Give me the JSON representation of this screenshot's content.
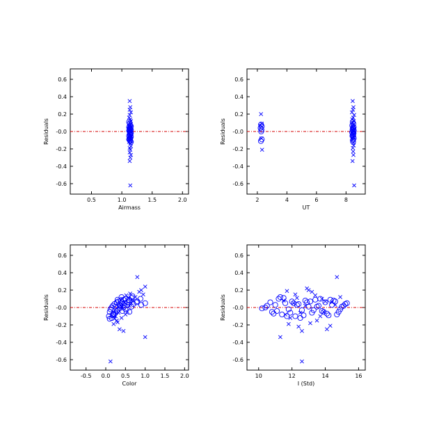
{
  "colors": {
    "points": "#0000ff",
    "zero_line": "#d40000",
    "axes": "#000000"
  },
  "chart_data": [
    {
      "type": "scatter",
      "xlabel": "Airmass",
      "ylabel": "Residuals",
      "xlim": [
        0.15,
        2.1
      ],
      "ylim": [
        -0.72,
        0.72
      ],
      "xticks": [
        0.5,
        1.0,
        1.5,
        2.0
      ],
      "xtick_labels": [
        "0.5",
        "1.0",
        "1.5",
        "2.0"
      ],
      "yticks": [
        -0.6,
        -0.4,
        -0.2,
        0.0,
        0.2,
        0.4,
        0.6
      ],
      "ytick_labels": [
        "-0.6",
        "-0.4",
        "-0.2",
        "-0.0",
        "0.2",
        "0.4",
        "0.6"
      ],
      "reference_line_y": 0.0,
      "series": [
        {
          "marker": "x",
          "x": [
            1.13,
            1.14,
            1.15,
            1.13,
            1.12,
            1.14,
            1.15,
            1.13,
            1.14,
            1.12,
            1.15,
            1.13,
            1.14,
            1.13,
            1.15,
            1.12,
            1.14,
            1.13,
            1.15,
            1.14,
            1.13,
            1.12,
            1.14,
            1.15,
            1.13,
            1.14,
            1.13,
            1.15,
            1.14,
            1.13,
            1.14,
            1.13
          ],
          "y": [
            0.35,
            0.28,
            0.22,
            0.19,
            0.16,
            0.14,
            0.12,
            0.1,
            0.08,
            0.06,
            0.05,
            0.03,
            0.02,
            0.01,
            -0.01,
            -0.02,
            -0.03,
            -0.05,
            -0.06,
            -0.08,
            -0.1,
            -0.12,
            -0.14,
            -0.17,
            -0.19,
            -0.21,
            -0.24,
            -0.27,
            -0.3,
            -0.34,
            -0.62,
            0.25
          ]
        },
        {
          "marker": "o",
          "x": [
            1.12,
            1.13,
            1.14,
            1.15,
            1.12,
            1.13,
            1.14,
            1.15,
            1.12,
            1.13,
            1.14,
            1.15,
            1.13,
            1.14,
            1.12,
            1.15,
            1.13,
            1.14,
            1.12,
            1.13,
            1.14,
            1.15,
            1.13,
            1.14
          ],
          "y": [
            0.11,
            0.09,
            0.07,
            0.06,
            0.05,
            0.04,
            0.03,
            0.02,
            0.01,
            0.0,
            -0.01,
            -0.02,
            -0.03,
            -0.04,
            -0.05,
            -0.06,
            -0.07,
            -0.08,
            -0.09,
            -0.1,
            -0.11,
            -0.12,
            0.02,
            -0.01
          ]
        }
      ]
    },
    {
      "type": "scatter",
      "xlabel": "UT",
      "ylabel": "Residuals",
      "xlim": [
        1.3,
        9.3
      ],
      "ylim": [
        -0.72,
        0.72
      ],
      "xticks": [
        2,
        4,
        6,
        8
      ],
      "xtick_labels": [
        "2",
        "4",
        "6",
        "8"
      ],
      "yticks": [
        -0.6,
        -0.4,
        -0.2,
        0.0,
        0.2,
        0.4,
        0.6
      ],
      "ytick_labels": [
        "-0.6",
        "-0.4",
        "-0.2",
        "-0.0",
        "0.2",
        "0.4",
        "0.6"
      ],
      "reference_line_y": 0.0,
      "series": [
        {
          "marker": "x",
          "x": [
            2.25,
            2.3,
            2.2,
            2.28,
            2.32,
            8.45,
            8.5,
            8.4,
            8.55,
            8.48,
            8.42,
            8.52,
            8.46,
            8.5,
            8.44,
            8.53,
            8.47,
            8.41,
            8.51,
            8.49,
            8.45,
            8.43,
            8.5,
            8.52,
            8.46,
            8.48,
            8.5,
            8.44,
            8.55,
            8.47
          ],
          "y": [
            0.2,
            0.09,
            0.07,
            -0.08,
            -0.21,
            0.35,
            0.28,
            0.22,
            0.19,
            0.16,
            0.14,
            0.12,
            0.1,
            0.08,
            0.05,
            0.03,
            0.01,
            -0.02,
            -0.04,
            -0.06,
            -0.08,
            -0.1,
            -0.13,
            -0.16,
            -0.19,
            -0.23,
            -0.27,
            -0.34,
            -0.62,
            0.25
          ]
        },
        {
          "marker": "o",
          "x": [
            2.25,
            2.3,
            2.22,
            2.28,
            2.26,
            2.3,
            2.24,
            8.45,
            8.5,
            8.42,
            8.52,
            8.46,
            8.48,
            8.44,
            8.53,
            8.47,
            8.41,
            8.51,
            8.49,
            8.45,
            8.43,
            8.5,
            8.52,
            8.46,
            8.48
          ],
          "y": [
            0.08,
            0.06,
            0.04,
            0.02,
            0.0,
            -0.09,
            -0.11,
            0.11,
            0.09,
            0.07,
            0.05,
            0.04,
            0.03,
            0.02,
            0.01,
            0.0,
            -0.01,
            -0.02,
            -0.03,
            -0.04,
            -0.05,
            -0.06,
            -0.08,
            -0.1,
            -0.12
          ]
        }
      ]
    },
    {
      "type": "scatter",
      "xlabel": "Color",
      "ylabel": "Residuals",
      "xlim": [
        -0.9,
        2.1
      ],
      "ylim": [
        -0.72,
        0.72
      ],
      "xticks": [
        -0.5,
        0.0,
        0.5,
        1.0,
        1.5,
        2.0
      ],
      "xtick_labels": [
        "-0.5",
        "0.0",
        "0.5",
        "1.0",
        "1.5",
        "2.0"
      ],
      "yticks": [
        -0.6,
        -0.4,
        -0.2,
        0.0,
        0.2,
        0.4,
        0.6
      ],
      "ytick_labels": [
        "-0.6",
        "-0.4",
        "-0.2",
        "-0.0",
        "0.2",
        "0.4",
        "0.6"
      ],
      "reference_line_y": 0.0,
      "series": [
        {
          "marker": "x",
          "x": [
            0.12,
            0.2,
            0.28,
            0.35,
            0.4,
            0.45,
            0.5,
            0.55,
            0.6,
            0.65,
            0.7,
            0.75,
            0.8,
            0.85,
            0.9,
            0.95,
            1.0,
            0.25,
            0.32,
            0.38,
            0.42,
            0.48,
            0.52,
            0.58,
            0.62,
            0.3,
            0.22,
            0.15,
            0.4,
            1.0
          ],
          "y": [
            -0.62,
            -0.19,
            -0.15,
            -0.25,
            -0.12,
            -0.27,
            -0.08,
            -0.05,
            0.02,
            0.05,
            0.08,
            0.12,
            0.35,
            0.18,
            0.2,
            0.15,
            0.24,
            -0.1,
            -0.06,
            0.03,
            0.1,
            0.06,
            0.14,
            0.11,
            0.16,
            -0.17,
            -0.13,
            -0.09,
            0.01,
            -0.34
          ]
        },
        {
          "marker": "o",
          "x": [
            0.08,
            0.1,
            0.12,
            0.15,
            0.18,
            0.2,
            0.22,
            0.25,
            0.28,
            0.3,
            0.32,
            0.35,
            0.38,
            0.4,
            0.42,
            0.45,
            0.48,
            0.5,
            0.55,
            0.6,
            0.65,
            0.7,
            0.8,
            0.9,
            1.0,
            0.15,
            0.2,
            0.25,
            0.3,
            0.35,
            0.4,
            0.45,
            0.5,
            0.55,
            0.6,
            0.65,
            0.1,
            0.18,
            0.28,
            0.38,
            0.48,
            0.58,
            0.68,
            0.78,
            0.88
          ],
          "y": [
            -0.1,
            -0.05,
            -0.02,
            0.0,
            0.02,
            -0.07,
            0.04,
            0.01,
            0.06,
            -0.03,
            0.07,
            0.03,
            0.08,
            0.05,
            -0.04,
            0.09,
            0.02,
            0.1,
            0.06,
            0.08,
            0.11,
            0.04,
            0.07,
            0.03,
            0.05,
            -0.12,
            -0.09,
            -0.06,
            0.09,
            -0.01,
            0.12,
            0.0,
            -0.02,
            0.03,
            -0.05,
            0.01,
            -0.13,
            -0.08,
            -0.04,
            0.02,
            0.05,
            0.09,
            0.13,
            0.06,
            0.1
          ]
        }
      ]
    },
    {
      "type": "scatter",
      "xlabel": "I (Std)",
      "ylabel": "Residuals",
      "xlim": [
        9.3,
        16.4
      ],
      "ylim": [
        -0.72,
        0.72
      ],
      "xticks": [
        10,
        12,
        14,
        16
      ],
      "xtick_labels": [
        "10",
        "12",
        "14",
        "16"
      ],
      "yticks": [
        -0.6,
        -0.4,
        -0.2,
        0.0,
        0.2,
        0.4,
        0.6
      ],
      "ytick_labels": [
        "-0.6",
        "-0.4",
        "-0.2",
        "-0.0",
        "0.2",
        "0.4",
        "0.6"
      ],
      "reference_line_y": 0.0,
      "series": [
        {
          "marker": "x",
          "x": [
            11.3,
            11.6,
            11.8,
            12.1,
            12.4,
            12.6,
            12.9,
            13.2,
            13.5,
            13.8,
            14.1,
            14.4,
            14.7,
            14.9,
            11.5,
            11.9,
            12.2,
            12.5,
            12.8,
            13.1,
            13.4,
            13.7,
            14.0,
            14.3,
            14.6,
            12.6,
            13.0,
            13.9,
            12.3,
            11.7
          ],
          "y": [
            -0.34,
            -0.08,
            -0.19,
            0.05,
            -0.22,
            -0.27,
            0.22,
            0.18,
            -0.15,
            0.1,
            -0.25,
            0.06,
            0.35,
            0.12,
            0.08,
            -0.12,
            0.15,
            -0.06,
            0.02,
            -0.18,
            0.14,
            -0.1,
            0.07,
            -0.21,
            0.03,
            -0.62,
            0.2,
            -0.05,
            0.11,
            0.19
          ]
        },
        {
          "marker": "o",
          "x": [
            10.2,
            10.5,
            10.8,
            11.0,
            11.2,
            11.4,
            11.6,
            11.8,
            12.0,
            12.2,
            12.4,
            12.6,
            12.8,
            13.0,
            13.2,
            13.4,
            13.6,
            13.8,
            14.0,
            14.2,
            14.4,
            14.6,
            14.8,
            15.0,
            15.2,
            10.4,
            10.9,
            11.3,
            11.7,
            12.1,
            12.5,
            12.9,
            13.3,
            13.7,
            14.1,
            14.5,
            14.9,
            15.3,
            11.1,
            11.5,
            11.9,
            12.3,
            12.7,
            13.1,
            13.5,
            13.9,
            14.3,
            14.7,
            15.1,
            10.7
          ],
          "y": [
            -0.01,
            0.02,
            -0.05,
            0.03,
            0.1,
            -0.08,
            0.05,
            -0.02,
            0.07,
            -0.1,
            0.04,
            -0.03,
            0.08,
            0.01,
            -0.06,
            0.09,
            0.02,
            -0.04,
            0.06,
            -0.09,
            0.03,
            0.07,
            -0.05,
            0.01,
            0.04,
            0.0,
            -0.07,
            0.12,
            -0.1,
            0.05,
            -0.12,
            0.06,
            -0.03,
            0.1,
            -0.07,
            0.08,
            -0.02,
            0.05,
            -0.04,
            0.11,
            -0.06,
            0.03,
            -0.09,
            0.07,
            0.01,
            -0.05,
            0.09,
            -0.08,
            0.02,
            0.06
          ]
        }
      ]
    }
  ]
}
